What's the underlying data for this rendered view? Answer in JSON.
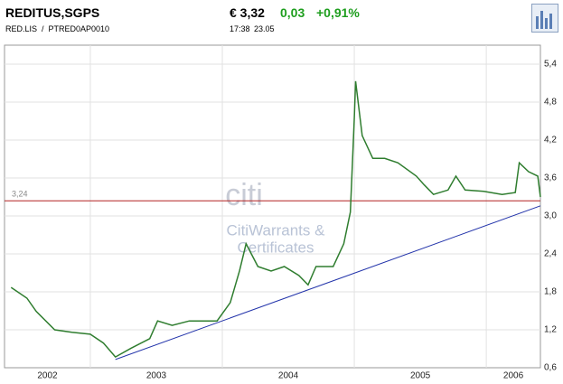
{
  "header": {
    "name": "REDITUS,SGPS",
    "price": "€ 3,32",
    "change": "0,03",
    "change_pct": "+0,91%",
    "symbol": "RED.LIS  /  PTRED0AP0010",
    "time": "17:38",
    "date": "23.05"
  },
  "chart_data": {
    "type": "line",
    "watermark": [
      "citi",
      "CitiWarrants &",
      "Certificates"
    ],
    "x": [
      2002.4,
      2002.52,
      2002.59,
      2002.73,
      2002.86,
      2003.0,
      2003.1,
      2003.19,
      2003.31,
      2003.45,
      2003.51,
      2003.62,
      2003.75,
      2003.96,
      2004.06,
      2004.13,
      2004.18,
      2004.27,
      2004.37,
      2004.47,
      2004.58,
      2004.65,
      2004.71,
      2004.84,
      2004.92,
      2004.97,
      2005.0,
      2005.01,
      2005.06,
      2005.14,
      2005.23,
      2005.33,
      2005.47,
      2005.53,
      2005.6,
      2005.71,
      2005.77,
      2005.84,
      2005.98,
      2006.12,
      2006.22,
      2006.25,
      2006.32,
      2006.39,
      2006.41
    ],
    "series": [
      {
        "color": "#2f7d2f",
        "values": [
          1.87,
          1.7,
          1.49,
          1.2,
          1.16,
          1.13,
          0.99,
          0.77,
          0.91,
          1.06,
          1.34,
          1.27,
          1.34,
          1.34,
          1.63,
          2.13,
          2.56,
          2.2,
          2.13,
          2.2,
          2.06,
          1.91,
          2.2,
          2.2,
          2.56,
          3.06,
          4.56,
          5.13,
          4.27,
          3.91,
          3.91,
          3.84,
          3.63,
          3.49,
          3.34,
          3.41,
          3.63,
          3.41,
          3.39,
          3.34,
          3.37,
          3.84,
          3.7,
          3.63,
          3.3
        ]
      }
    ],
    "trendline": {
      "color": "#2233aa",
      "x": [
        2003.19,
        2006.41
      ],
      "values": [
        0.73,
        3.16
      ]
    },
    "hline": {
      "value": 3.24,
      "label": "3,24",
      "color": "#b22222"
    },
    "xlim": [
      2002.35,
      2006.41
    ],
    "xticks": [
      {
        "value": 2002,
        "label": "2002"
      },
      {
        "value": 2003,
        "label": "2003"
      },
      {
        "value": 2004,
        "label": "2004"
      },
      {
        "value": 2005,
        "label": "2005"
      },
      {
        "value": 2006,
        "label": "2006"
      }
    ],
    "ylim": [
      0.6,
      5.7
    ],
    "yticks": [
      {
        "value": 0.6,
        "label": "0,6"
      },
      {
        "value": 1.2,
        "label": "1,2"
      },
      {
        "value": 1.8,
        "label": "1,8"
      },
      {
        "value": 2.4,
        "label": "2,4"
      },
      {
        "value": 3.0,
        "label": "3,0"
      },
      {
        "value": 3.6,
        "label": "3,6"
      },
      {
        "value": 4.2,
        "label": "4,2"
      },
      {
        "value": 4.8,
        "label": "4,8"
      },
      {
        "value": 5.4,
        "label": "5,4"
      }
    ],
    "grid": true
  }
}
